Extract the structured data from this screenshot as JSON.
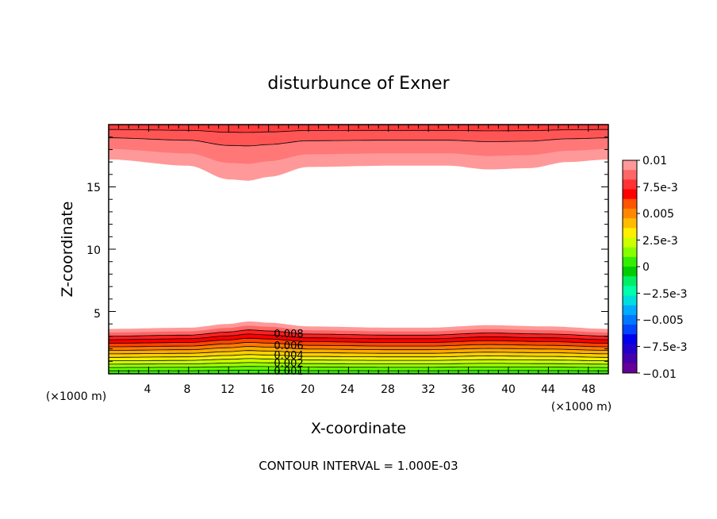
{
  "chart_data": {
    "type": "heatmap",
    "title": "disturbunce of Exner",
    "xlabel": "X-coordinate",
    "ylabel": "Z-coordinate",
    "x_unit": "(×1000 m)",
    "y_unit": "(×1000 m)",
    "xlim": [
      0,
      50
    ],
    "ylim": [
      0,
      20
    ],
    "x_ticks": [
      "4",
      "8",
      "12",
      "16",
      "20",
      "24",
      "28",
      "32",
      "36",
      "40",
      "44",
      "48"
    ],
    "y_ticks": [
      "5",
      "10",
      "15"
    ],
    "contour_interval_text": "CONTOUR INTERVAL = 1.000E-03",
    "contour_labels": [
      "0.008",
      "0.006",
      "0.004",
      "0.002",
      "0.001"
    ],
    "colorbar": {
      "min": -0.01,
      "max": 0.01,
      "labels": [
        "0.01",
        "7.5e-3",
        "0.005",
        "2.5e-3",
        "0",
        "−2.5e-3",
        "−0.005",
        "−7.5e-3",
        "−0.01"
      ],
      "colors": [
        "#ff9999",
        "#ff6666",
        "#ff3333",
        "#ff0000",
        "#ff5500",
        "#ff8800",
        "#ffbb00",
        "#ffee00",
        "#ccff00",
        "#88ff00",
        "#33ee00",
        "#00cc00",
        "#00ee66",
        "#00ffaa",
        "#00dddd",
        "#00aaff",
        "#0077ff",
        "#0044ff",
        "#0000ee",
        "#2200cc",
        "#4400aa",
        "#660099"
      ]
    },
    "upper_layer": {
      "z_at_x": [
        [
          0,
          17.2
        ],
        [
          8,
          16.7
        ],
        [
          12,
          15.6
        ],
        [
          14,
          15.5
        ],
        [
          16,
          15.8
        ],
        [
          20,
          16.6
        ],
        [
          28,
          16.7
        ],
        [
          34,
          16.7
        ],
        [
          38,
          16.4
        ],
        [
          42,
          16.5
        ],
        [
          46,
          17.0
        ],
        [
          50,
          17.2
        ]
      ]
    },
    "lower_layer": {
      "z_top_at_x": [
        [
          0,
          3.6
        ],
        [
          8,
          3.7
        ],
        [
          12,
          4.0
        ],
        [
          14,
          4.2
        ],
        [
          16,
          4.1
        ],
        [
          20,
          3.8
        ],
        [
          28,
          3.7
        ],
        [
          32,
          3.7
        ],
        [
          38,
          3.9
        ],
        [
          44,
          3.8
        ],
        [
          50,
          3.6
        ]
      ]
    }
  }
}
